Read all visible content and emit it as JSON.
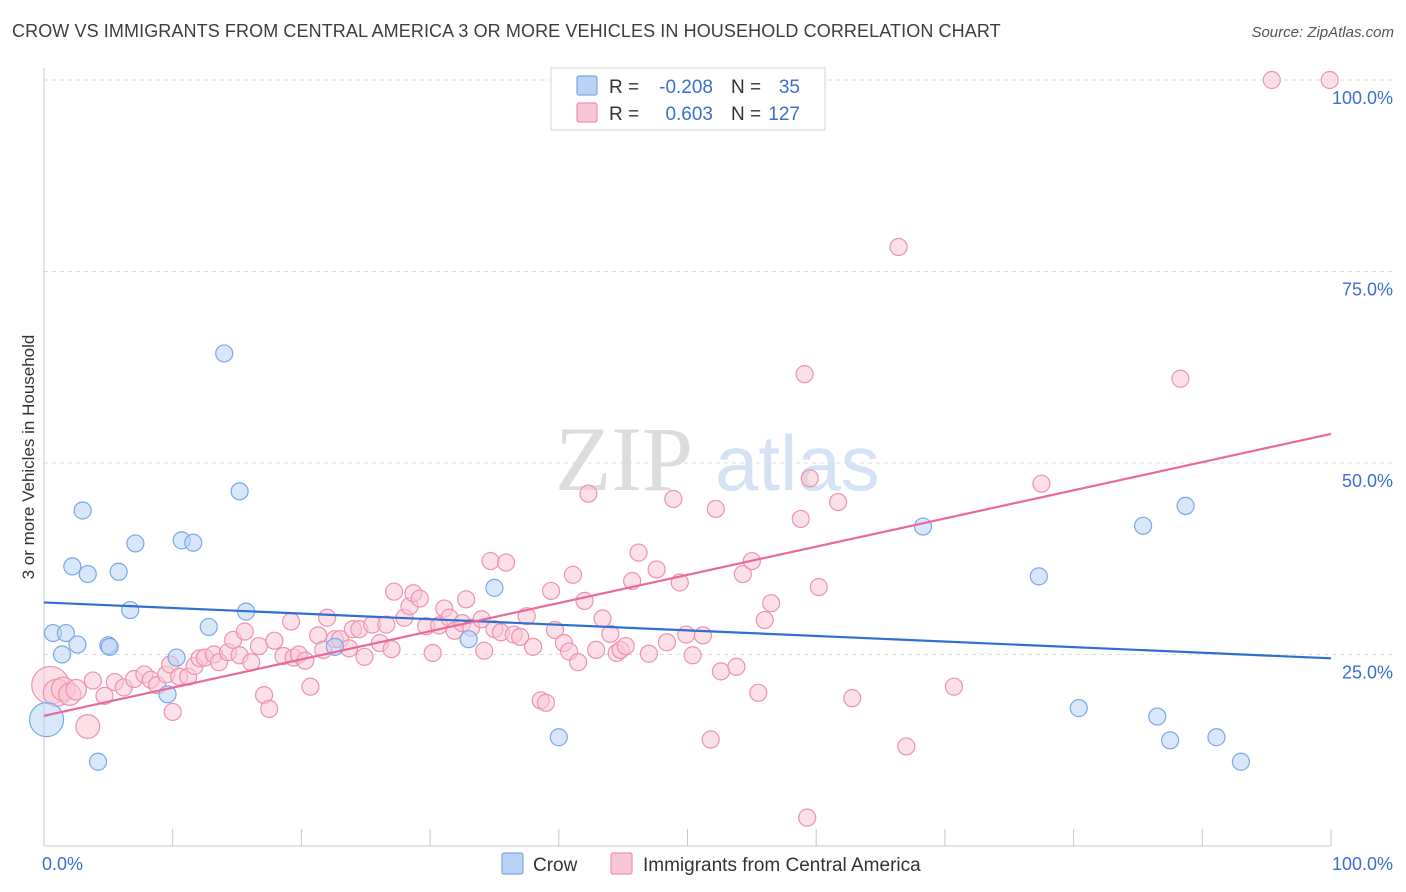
{
  "title": "CROW VS IMMIGRANTS FROM CENTRAL AMERICA 3 OR MORE VEHICLES IN HOUSEHOLD CORRELATION CHART",
  "source": "Source: ZipAtlas.com",
  "watermark": {
    "zip": "ZIP",
    "atlas": "atlas"
  },
  "colors": {
    "crow_fill": "#b9d3f5",
    "crow_stroke": "#7aa8e6",
    "crow_line": "#2f6fd0",
    "imm_fill": "#f9c6d6",
    "imm_stroke": "#ee92b0",
    "imm_line": "#e8699a",
    "tick_text": "#3a6fcf",
    "grid": "#dddddd"
  },
  "legend_stats": {
    "r_label": "R =",
    "n_label": "N =",
    "crow": {
      "r": "-0.208",
      "n": "35"
    },
    "imm": {
      "r": "0.603",
      "n": "127"
    }
  },
  "chart_data": {
    "type": "scatter",
    "xlabel": "",
    "ylabel": "3 or more Vehicles in Household",
    "xlim": [
      0,
      100
    ],
    "ylim": [
      0,
      100
    ],
    "x_tick_labels": [
      "0.0%",
      "100.0%"
    ],
    "y_ticks": [
      25,
      50,
      75,
      100
    ],
    "y_tick_labels": [
      "25.0%",
      "50.0%",
      "75.0%",
      "100.0%"
    ],
    "grid": true,
    "legend_position": "bottom-center",
    "series": [
      {
        "name": "Crow",
        "trend": [
          [
            0,
            31.8
          ],
          [
            100,
            24.5
          ]
        ],
        "points": [
          [
            0.2,
            16.5,
            2
          ],
          [
            0.7,
            27.8,
            1
          ],
          [
            1.4,
            25.0,
            1
          ],
          [
            1.7,
            27.8,
            1
          ],
          [
            2.2,
            36.5,
            1
          ],
          [
            2.6,
            26.3,
            1
          ],
          [
            3.0,
            43.8,
            1
          ],
          [
            3.4,
            35.5,
            1
          ],
          [
            4.2,
            11.0,
            1
          ],
          [
            5.0,
            26.2,
            1
          ],
          [
            5.1,
            26.0,
            1
          ],
          [
            5.8,
            35.8,
            1
          ],
          [
            6.7,
            30.8,
            1
          ],
          [
            7.1,
            39.5,
            1
          ],
          [
            9.6,
            19.8,
            1
          ],
          [
            10.3,
            24.6,
            1
          ],
          [
            10.7,
            39.9,
            1
          ],
          [
            11.6,
            39.6,
            1
          ],
          [
            12.8,
            28.6,
            1
          ],
          [
            14.0,
            64.3,
            1
          ],
          [
            15.2,
            46.3,
            1
          ],
          [
            15.7,
            30.6,
            1
          ],
          [
            22.6,
            26.0,
            1
          ],
          [
            33.0,
            27.0,
            1
          ],
          [
            35.0,
            33.7,
            1
          ],
          [
            40.0,
            14.2,
            1
          ],
          [
            68.3,
            41.7,
            1
          ],
          [
            77.3,
            35.2,
            1
          ],
          [
            80.4,
            18.0,
            1
          ],
          [
            85.4,
            41.8,
            1
          ],
          [
            86.5,
            16.9,
            1
          ],
          [
            87.5,
            13.8,
            1
          ],
          [
            88.7,
            44.4,
            1
          ],
          [
            91.1,
            14.2,
            1
          ],
          [
            93.0,
            11.0,
            1
          ]
        ]
      },
      {
        "name": "Immigrants from Central America",
        "trend": [
          [
            0,
            17.0
          ],
          [
            100,
            53.8
          ]
        ],
        "points": [
          [
            0.5,
            21.0,
            2.2
          ],
          [
            1.0,
            20.0,
            1.6
          ],
          [
            1.5,
            20.5,
            1.4
          ],
          [
            2.0,
            19.8,
            1.3
          ],
          [
            2.5,
            20.4,
            1.2
          ],
          [
            3.4,
            15.6,
            1.4
          ],
          [
            3.8,
            21.6,
            1
          ],
          [
            4.7,
            19.6,
            1
          ],
          [
            5.5,
            21.4,
            1
          ],
          [
            6.2,
            20.7,
            1
          ],
          [
            7.0,
            21.8,
            1
          ],
          [
            7.8,
            22.4,
            1
          ],
          [
            8.3,
            21.7,
            1
          ],
          [
            8.8,
            21.0,
            1
          ],
          [
            9.5,
            22.4,
            1
          ],
          [
            9.8,
            23.7,
            1
          ],
          [
            10.0,
            17.5,
            1
          ],
          [
            10.5,
            22.1,
            1
          ],
          [
            11.2,
            22.1,
            1
          ],
          [
            11.7,
            23.5,
            1
          ],
          [
            12.1,
            24.5,
            1
          ],
          [
            12.5,
            24.6,
            1
          ],
          [
            13.2,
            25.0,
            1
          ],
          [
            13.6,
            24.0,
            1
          ],
          [
            14.3,
            25.3,
            1
          ],
          [
            14.7,
            26.9,
            1
          ],
          [
            15.2,
            24.9,
            1
          ],
          [
            15.6,
            28.0,
            1
          ],
          [
            16.1,
            24.0,
            1
          ],
          [
            16.7,
            26.1,
            1
          ],
          [
            17.1,
            19.7,
            1
          ],
          [
            17.5,
            17.9,
            1
          ],
          [
            17.9,
            26.8,
            1
          ],
          [
            18.6,
            24.8,
            1
          ],
          [
            19.2,
            29.3,
            1
          ],
          [
            19.4,
            24.6,
            1
          ],
          [
            19.8,
            25.0,
            1
          ],
          [
            20.3,
            24.2,
            1
          ],
          [
            20.7,
            20.8,
            1
          ],
          [
            21.3,
            27.5,
            1
          ],
          [
            21.7,
            25.6,
            1
          ],
          [
            22.0,
            29.8,
            1
          ],
          [
            22.6,
            27.0,
            1
          ],
          [
            23.0,
            27.0,
            1
          ],
          [
            23.7,
            25.8,
            1
          ],
          [
            24.0,
            28.3,
            1
          ],
          [
            24.5,
            28.3,
            1
          ],
          [
            24.9,
            24.7,
            1
          ],
          [
            25.5,
            28.9,
            1
          ],
          [
            26.1,
            26.5,
            1
          ],
          [
            26.6,
            28.9,
            1
          ],
          [
            27.0,
            25.7,
            1
          ],
          [
            27.2,
            33.2,
            1
          ],
          [
            28.0,
            29.8,
            1
          ],
          [
            28.4,
            31.3,
            1
          ],
          [
            28.7,
            33.0,
            1
          ],
          [
            29.2,
            32.3,
            1
          ],
          [
            29.7,
            28.7,
            1
          ],
          [
            30.2,
            25.2,
            1
          ],
          [
            30.7,
            28.8,
            1
          ],
          [
            31.1,
            31.0,
            1
          ],
          [
            31.5,
            29.8,
            1
          ],
          [
            31.9,
            28.1,
            1
          ],
          [
            32.5,
            29.1,
            1
          ],
          [
            32.8,
            32.2,
            1
          ],
          [
            33.2,
            28.5,
            1
          ],
          [
            34.0,
            29.6,
            1
          ],
          [
            34.2,
            25.5,
            1
          ],
          [
            34.7,
            37.2,
            1
          ],
          [
            35.0,
            28.3,
            1
          ],
          [
            35.5,
            27.9,
            1
          ],
          [
            35.9,
            37.0,
            1
          ],
          [
            36.5,
            27.6,
            1
          ],
          [
            37.0,
            27.3,
            1
          ],
          [
            37.5,
            30.0,
            1
          ],
          [
            38.0,
            26.0,
            1
          ],
          [
            38.6,
            19.0,
            1
          ],
          [
            39.0,
            18.7,
            1
          ],
          [
            39.4,
            33.3,
            1
          ],
          [
            39.7,
            28.2,
            1
          ],
          [
            40.4,
            26.5,
            1
          ],
          [
            40.8,
            25.4,
            1
          ],
          [
            41.1,
            35.4,
            1
          ],
          [
            41.5,
            24.0,
            1
          ],
          [
            42.0,
            32.0,
            1
          ],
          [
            42.3,
            46.0,
            1
          ],
          [
            42.9,
            25.6,
            1
          ],
          [
            43.4,
            29.7,
            1
          ],
          [
            44.0,
            27.7,
            1
          ],
          [
            44.5,
            25.2,
            1
          ],
          [
            44.8,
            25.6,
            1
          ],
          [
            45.2,
            26.1,
            1
          ],
          [
            45.7,
            34.6,
            1
          ],
          [
            46.2,
            38.3,
            1
          ],
          [
            47.0,
            25.1,
            1
          ],
          [
            47.6,
            36.1,
            1
          ],
          [
            48.4,
            26.6,
            1
          ],
          [
            48.9,
            45.3,
            1
          ],
          [
            49.4,
            34.4,
            1
          ],
          [
            49.9,
            27.6,
            1
          ],
          [
            50.4,
            24.9,
            1
          ],
          [
            51.2,
            27.5,
            1
          ],
          [
            51.8,
            13.9,
            1
          ],
          [
            52.2,
            44.0,
            1
          ],
          [
            52.6,
            22.8,
            1
          ],
          [
            53.8,
            23.4,
            1
          ],
          [
            54.3,
            35.5,
            1
          ],
          [
            55.0,
            37.2,
            1
          ],
          [
            55.5,
            20.0,
            1
          ],
          [
            56.0,
            29.5,
            1
          ],
          [
            56.5,
            31.7,
            1
          ],
          [
            58.8,
            42.7,
            1
          ],
          [
            59.1,
            61.6,
            1
          ],
          [
            59.5,
            48.0,
            1
          ],
          [
            60.2,
            33.8,
            1
          ],
          [
            61.7,
            44.9,
            1
          ],
          [
            62.8,
            19.3,
            1
          ],
          [
            66.4,
            78.2,
            1
          ],
          [
            67.0,
            13.0,
            1
          ],
          [
            70.7,
            20.8,
            1
          ],
          [
            77.5,
            47.3,
            1
          ],
          [
            88.3,
            61.0,
            1
          ],
          [
            95.4,
            100.0,
            1
          ],
          [
            99.9,
            100.0,
            1
          ],
          [
            59.3,
            3.7,
            1
          ]
        ]
      }
    ]
  }
}
